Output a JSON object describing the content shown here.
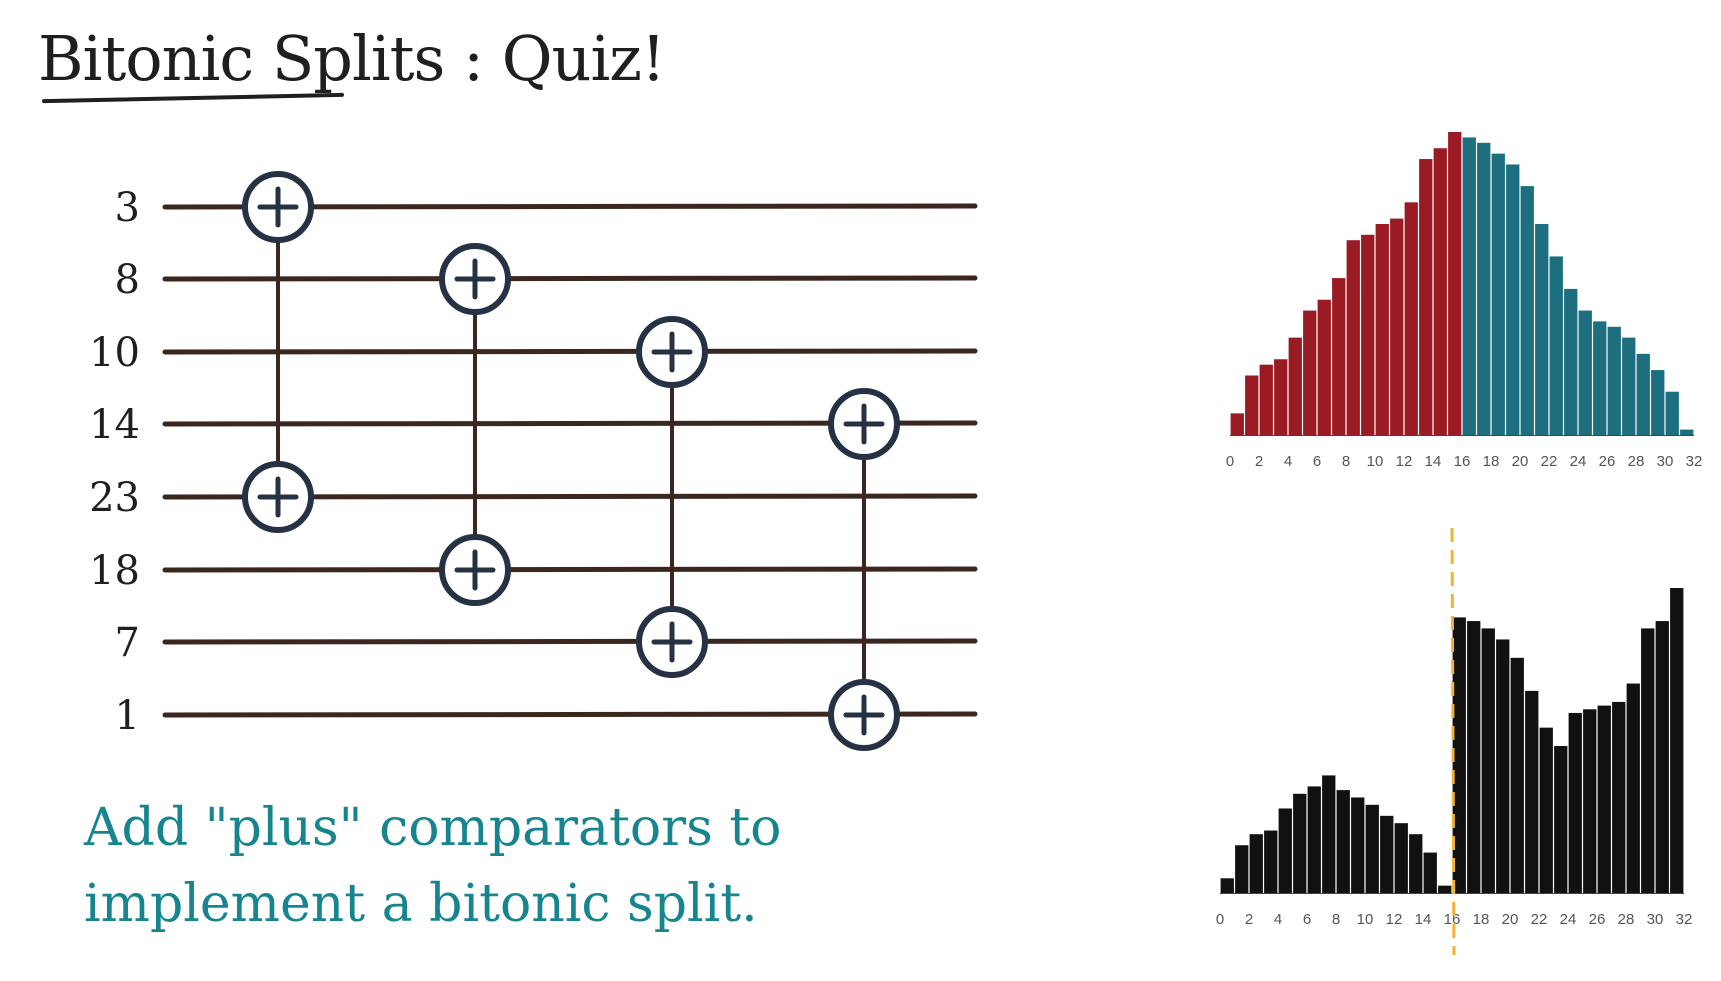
{
  "title": {
    "main": "Bitonic Splits",
    "suffix": ": Quiz!"
  },
  "instruction": "Add \"plus\" comparators to implement a bitonic split.",
  "network": {
    "inputs": [
      "3",
      "8",
      "10",
      "14",
      "23",
      "18",
      "7",
      "1"
    ],
    "comparators": [
      {
        "from": 0,
        "to": 4,
        "type": "plus"
      },
      {
        "from": 1,
        "to": 5,
        "type": "plus"
      },
      {
        "from": 2,
        "to": 6,
        "type": "plus"
      },
      {
        "from": 3,
        "to": 7,
        "type": "plus"
      }
    ],
    "wire_color": "#3b2620",
    "node_color": "#263244"
  },
  "chart_data": [
    {
      "type": "bar",
      "x_ticks": [
        "0",
        "2",
        "4",
        "6",
        "8",
        "10",
        "12",
        "14",
        "16",
        "18",
        "20",
        "22",
        "24",
        "26",
        "28",
        "30",
        "32"
      ],
      "series": [
        {
          "color": "#9b1b24",
          "values": [
            4,
            11,
            13,
            14,
            18,
            23,
            25,
            29,
            36,
            37,
            39,
            40,
            43,
            51,
            53,
            56
          ]
        },
        {
          "color": "#1d6e7e",
          "values": [
            55,
            54,
            52,
            50,
            46,
            39,
            33,
            27,
            23,
            21,
            20,
            18,
            15,
            12,
            8,
            1
          ]
        }
      ],
      "ylim": [
        0,
        56
      ]
    },
    {
      "type": "bar",
      "x_ticks": [
        "0",
        "2",
        "4",
        "6",
        "8",
        "10",
        "12",
        "14",
        "16",
        "18",
        "20",
        "22",
        "24",
        "26",
        "28",
        "30",
        "32"
      ],
      "series": [
        {
          "color": "#111111",
          "values": [
            4,
            13,
            16,
            17,
            23,
            27,
            29,
            32,
            28,
            26,
            24,
            21,
            19,
            16,
            11,
            2,
            75,
            74,
            72,
            69,
            64,
            55,
            45,
            40,
            49,
            50,
            51,
            52,
            57,
            72,
            74,
            83
          ]
        }
      ],
      "split_line": {
        "position": 15.5,
        "color": "#f2b233"
      },
      "ylim": [
        0,
        83
      ]
    }
  ]
}
